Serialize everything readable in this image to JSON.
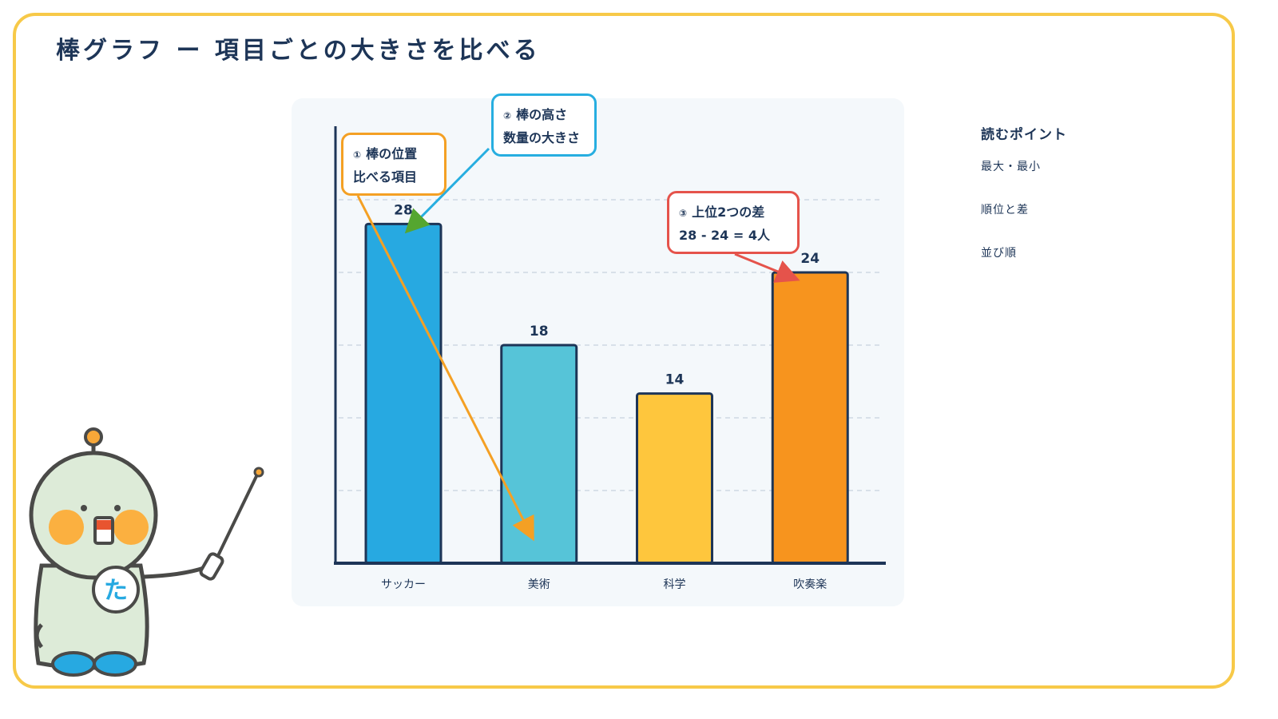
{
  "page": {
    "title": "棒グラフ ー 項目ごとの大きさを比べる"
  },
  "chart_data": {
    "type": "bar",
    "categories": [
      "サッカー",
      "美術",
      "科学",
      "吹奏楽"
    ],
    "values": [
      28,
      18,
      14,
      24
    ],
    "colors": [
      "#27a9e1",
      "#56c4d8",
      "#fec63d",
      "#f7941e"
    ],
    "ylim": [
      0,
      36
    ],
    "grid": true,
    "xlabel": "",
    "ylabel": ""
  },
  "callouts": [
    {
      "number": "①",
      "line1": "棒の位置",
      "line2": "比べる項目",
      "color": "#f4a024"
    },
    {
      "number": "②",
      "line1": "棒の高さ",
      "line2": "数量の大きさ",
      "color": "#27aee0"
    },
    {
      "number": "③",
      "line1": "上位2つの差",
      "line2": "28 - 24 = 4人",
      "color": "#e5534b"
    }
  ],
  "reading_points": {
    "title": "読むポイント",
    "items": [
      "最大・最小",
      "順位と差",
      "並び順"
    ]
  },
  "mascot": {
    "badge": "た"
  }
}
